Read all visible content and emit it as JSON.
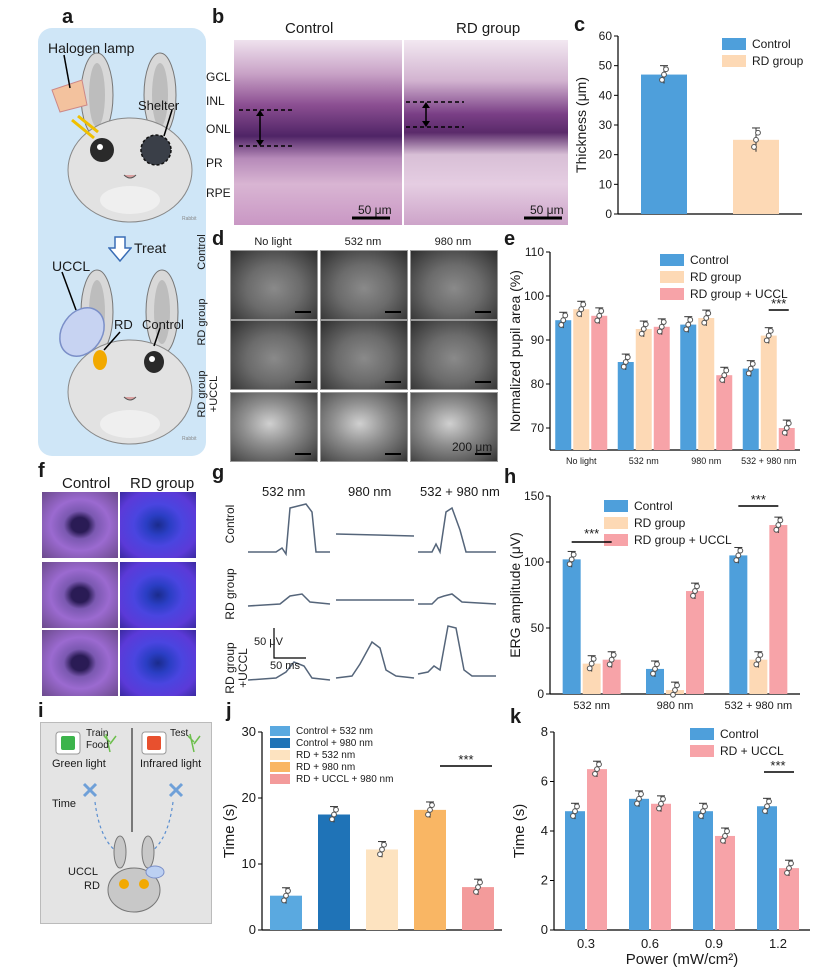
{
  "panel_labels": {
    "a": "a",
    "b": "b",
    "c": "c",
    "d": "d",
    "e": "e",
    "f": "f",
    "g": "g",
    "h": "h",
    "i": "i",
    "j": "j",
    "k": "k"
  },
  "panel_a": {
    "halogen": "Halogen lamp",
    "shelter": "Shelter",
    "treat": "Treat",
    "uccl": "UCCL",
    "rd": "RD",
    "control": "Control",
    "watermark": "Rabbit"
  },
  "panel_b": {
    "col_control": "Control",
    "col_rd": "RD group",
    "layers": [
      "GCL",
      "INL",
      "ONL",
      "PR",
      "RPE"
    ],
    "scale1": "50 μm",
    "scale2": "50 μm"
  },
  "panel_d": {
    "cols": [
      "No light",
      "532 nm",
      "980 nm"
    ],
    "rows": [
      "Control",
      "RD group",
      "RD group\n+UCCL"
    ],
    "row_line1": [
      "Control",
      "RD group",
      "RD group"
    ],
    "row_line2": [
      "",
      "",
      "+UCCL"
    ],
    "scale": "200 μm"
  },
  "panel_f": {
    "control": "Control",
    "rd": "RD group"
  },
  "panel_g": {
    "cols": [
      "532 nm",
      "980 nm",
      "532 + 980 nm"
    ],
    "rows_line1": [
      "Control",
      "RD group",
      "RD group"
    ],
    "rows_line2": [
      "",
      "",
      "+UCCL"
    ],
    "scale_v": "50 μV",
    "scale_t": "50 ms"
  },
  "panel_i": {
    "train": "Train",
    "food": "Food",
    "test": "Test",
    "green": "Green light",
    "infrared": "Infrared light",
    "time": "Time",
    "uccl": "UCCL",
    "rd": "RD"
  },
  "chart_data": [
    {
      "id": "c",
      "type": "bar",
      "categories": [
        "Control",
        "RD group"
      ],
      "values": [
        47,
        25
      ],
      "errors": [
        3,
        4
      ],
      "ylabel": "Thickness (μm)",
      "ylim": [
        0,
        60
      ],
      "yticks": [
        0,
        10,
        20,
        30,
        40,
        50,
        60
      ],
      "legend": [
        "Control",
        "RD group"
      ],
      "colors": [
        "#4e9fdb",
        "#fdd9b5"
      ]
    },
    {
      "id": "e",
      "type": "bar",
      "categories": [
        "No light",
        "532 nm",
        "980 nm",
        "532 + 980 nm"
      ],
      "ylabel": "Normalized pupil area (%)",
      "ylim": [
        65,
        110
      ],
      "yticks": [
        70,
        80,
        90,
        100,
        110
      ],
      "series": [
        {
          "name": "Control",
          "values": [
            94.5,
            85,
            93.5,
            83.5
          ],
          "color": "#4e9fdb"
        },
        {
          "name": "RD group",
          "values": [
            97,
            92.5,
            95,
            91
          ],
          "color": "#fdd9b5"
        },
        {
          "name": "RD group + UCCL",
          "values": [
            95.5,
            93,
            82,
            70
          ],
          "color": "#f7a3a8"
        }
      ],
      "significance": "***"
    },
    {
      "id": "h",
      "type": "bar",
      "categories": [
        "532 nm",
        "980 nm",
        "532 + 980 nm"
      ],
      "ylabel": "ERG amplitude (μV)",
      "ylim": [
        0,
        150
      ],
      "yticks": [
        0,
        50,
        100,
        150
      ],
      "series": [
        {
          "name": "Control",
          "values": [
            102,
            19,
            105
          ],
          "color": "#4e9fdb"
        },
        {
          "name": "RD group",
          "values": [
            23,
            3,
            26
          ],
          "color": "#fdd9b5"
        },
        {
          "name": "RD group + UCCL",
          "values": [
            26,
            78,
            128
          ],
          "color": "#f7a3a8"
        }
      ],
      "significance": [
        "***",
        "***"
      ]
    },
    {
      "id": "j",
      "type": "bar",
      "categories": [
        "Control + 532 nm",
        "Control + 980 nm",
        "RD + 532 nm",
        "RD + 980 nm",
        "RD + UCCL + 980 nm"
      ],
      "values": [
        5.2,
        17.5,
        12.2,
        18.2,
        6.5
      ],
      "colors": [
        "#5aa9e0",
        "#1f73b7",
        "#fde3c0",
        "#f9b664",
        "#f39b9b"
      ],
      "ylabel": "Time (s)",
      "ylim": [
        0,
        30
      ],
      "yticks": [
        0,
        10,
        20,
        30
      ],
      "significance": "***"
    },
    {
      "id": "k",
      "type": "bar",
      "categories": [
        "0.3",
        "0.6",
        "0.9",
        "1.2"
      ],
      "xlabel": "Power (mW/cm²)",
      "ylabel": "Time (s)",
      "ylim": [
        0,
        8
      ],
      "yticks": [
        0,
        2,
        4,
        6,
        8
      ],
      "series": [
        {
          "name": "Control",
          "values": [
            4.8,
            5.3,
            4.8,
            5.0
          ],
          "color": "#4e9fdb"
        },
        {
          "name": "RD + UCCL",
          "values": [
            6.5,
            5.1,
            3.8,
            2.5
          ],
          "color": "#f7a3a8"
        }
      ],
      "significance": "***"
    }
  ]
}
